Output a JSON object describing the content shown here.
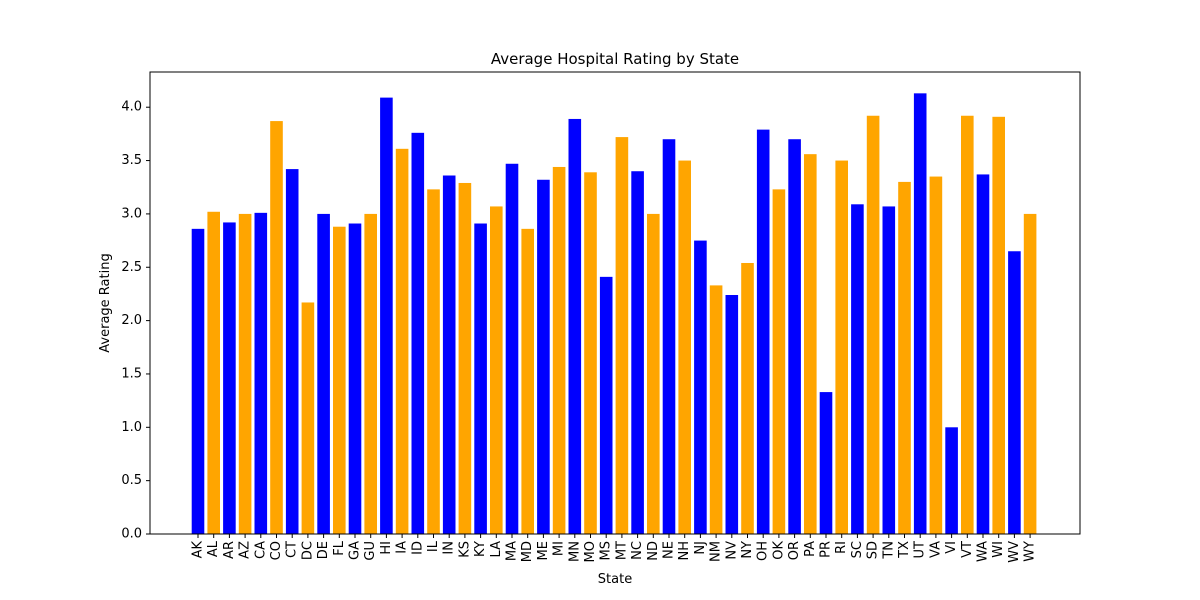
{
  "chart_data": {
    "type": "bar",
    "title": "Average Hospital Rating by State",
    "xlabel": "State",
    "ylabel": "Average Rating",
    "ylim": [
      0,
      4.33
    ],
    "yticks": [
      "0.0",
      "0.5",
      "1.0",
      "1.5",
      "2.0",
      "2.5",
      "3.0",
      "3.5",
      "4.0"
    ],
    "grid": false,
    "colors": [
      "#0000ff",
      "#ffa500"
    ],
    "categories": [
      "AK",
      "AL",
      "AR",
      "AZ",
      "CA",
      "CO",
      "CT",
      "DC",
      "DE",
      "FL",
      "GA",
      "GU",
      "HI",
      "IA",
      "ID",
      "IL",
      "IN",
      "KS",
      "KY",
      "LA",
      "MA",
      "MD",
      "ME",
      "MI",
      "MN",
      "MO",
      "MS",
      "MT",
      "NC",
      "ND",
      "NE",
      "NH",
      "NJ",
      "NM",
      "NV",
      "NY",
      "OH",
      "OK",
      "OR",
      "PA",
      "PR",
      "RI",
      "SC",
      "SD",
      "TN",
      "TX",
      "UT",
      "VA",
      "VI",
      "VT",
      "WA",
      "WI",
      "WV",
      "WY"
    ],
    "values": [
      2.86,
      3.02,
      2.92,
      3.0,
      3.01,
      3.87,
      3.42,
      2.17,
      3.0,
      2.88,
      2.91,
      3.0,
      4.09,
      3.61,
      3.76,
      3.23,
      3.36,
      3.29,
      2.91,
      3.07,
      3.47,
      2.86,
      3.32,
      3.44,
      3.89,
      3.39,
      2.41,
      3.72,
      3.4,
      3.0,
      3.7,
      3.5,
      2.75,
      2.33,
      2.24,
      2.54,
      3.79,
      3.23,
      3.7,
      3.56,
      1.33,
      3.5,
      3.09,
      3.92,
      3.07,
      3.3,
      4.13,
      3.35,
      1.0,
      3.92,
      3.37,
      3.91,
      2.65,
      3.0
    ]
  }
}
